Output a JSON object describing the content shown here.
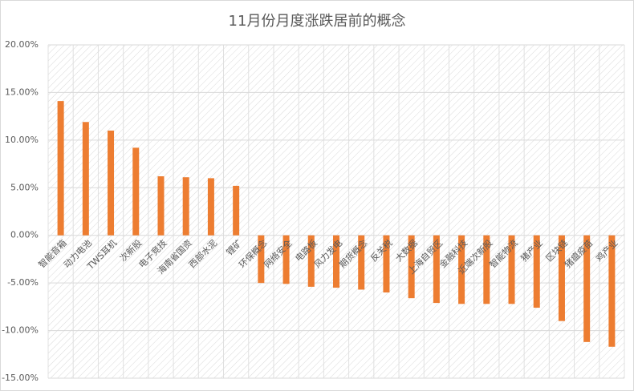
{
  "chart_data": {
    "type": "bar",
    "title": "11月份月度涨跌居前的概念",
    "categories": [
      "智能音箱",
      "动力电池",
      "TWS耳机",
      "次新股",
      "电子竞技",
      "海南省国资",
      "西部水泥",
      "锂矿",
      "环保概念",
      "网络安全",
      "电路板",
      "风力发电",
      "期货概念",
      "反关税",
      "大数据",
      "上海自贸区",
      "金融科技",
      "近端次新股",
      "智能物流",
      "猪产业",
      "区块链",
      "猪瘟疫苗",
      "鸡产业"
    ],
    "values": [
      14.1,
      11.9,
      11.0,
      9.2,
      6.2,
      6.1,
      6.0,
      5.2,
      -5.0,
      -5.1,
      -5.4,
      -5.5,
      -5.7,
      -6.0,
      -6.6,
      -7.1,
      -7.2,
      -7.2,
      -7.2,
      -7.6,
      -9.0,
      -11.2,
      -11.7
    ],
    "color": "#ed7d31",
    "ylim": [
      -15,
      20
    ],
    "yticks": [
      {
        "value": -15,
        "label": "-15.00%"
      },
      {
        "value": -10,
        "label": "-10.00%"
      },
      {
        "value": -5,
        "label": "-5.00%"
      },
      {
        "value": 0,
        "label": "0.00%"
      },
      {
        "value": 5,
        "label": "5.00%"
      },
      {
        "value": 10,
        "label": "10.00%"
      },
      {
        "value": 15,
        "label": "15.00%"
      },
      {
        "value": 20,
        "label": "20.00%"
      }
    ],
    "grid": true
  }
}
